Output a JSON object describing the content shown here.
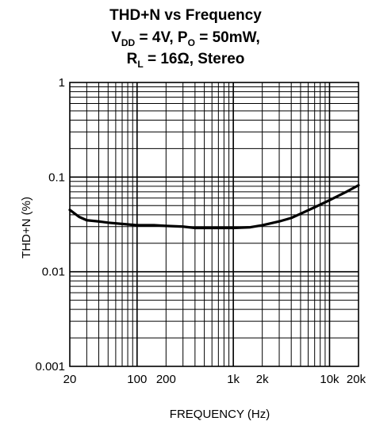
{
  "chart_data": {
    "type": "line",
    "title": {
      "line1": "THD+N vs Frequency",
      "line2": {
        "v": "V",
        "v_sub": "DD",
        "mid": " = 4V, P",
        "p_sub": "O",
        "end": " = 50mW,"
      },
      "line3": {
        "r": "R",
        "r_sub": "L",
        "end": " = 16Ω, Stereo"
      }
    },
    "xlabel": "FREQUENCY (Hz)",
    "ylabel": "THD+N (%)",
    "x_scale": "log",
    "y_scale": "log",
    "xlim": [
      20,
      20000
    ],
    "ylim": [
      0.001,
      1
    ],
    "x_ticks": [
      {
        "value": 20,
        "label": "20"
      },
      {
        "value": 100,
        "label": "100"
      },
      {
        "value": 200,
        "label": "200"
      },
      {
        "value": 1000,
        "label": "1k"
      },
      {
        "value": 2000,
        "label": "2k"
      },
      {
        "value": 10000,
        "label": "10k"
      },
      {
        "value": 20000,
        "label": "20k"
      }
    ],
    "y_ticks": [
      {
        "value": 0.001,
        "label": "0.001"
      },
      {
        "value": 0.01,
        "label": "0.01"
      },
      {
        "value": 0.1,
        "label": "0.1"
      },
      {
        "value": 1,
        "label": "1"
      }
    ],
    "grid": true,
    "series": [
      {
        "color": "#000000",
        "x": [
          20,
          25,
          30,
          40,
          50,
          70,
          100,
          150,
          200,
          300,
          400,
          600,
          800,
          1000,
          1500,
          2000,
          3000,
          4000,
          5000,
          7000,
          10000,
          15000,
          20000
        ],
        "y": [
          0.045,
          0.038,
          0.035,
          0.034,
          0.033,
          0.032,
          0.031,
          0.031,
          0.0305,
          0.03,
          0.029,
          0.029,
          0.029,
          0.029,
          0.0295,
          0.031,
          0.034,
          0.037,
          0.041,
          0.048,
          0.057,
          0.07,
          0.082
        ]
      }
    ]
  }
}
